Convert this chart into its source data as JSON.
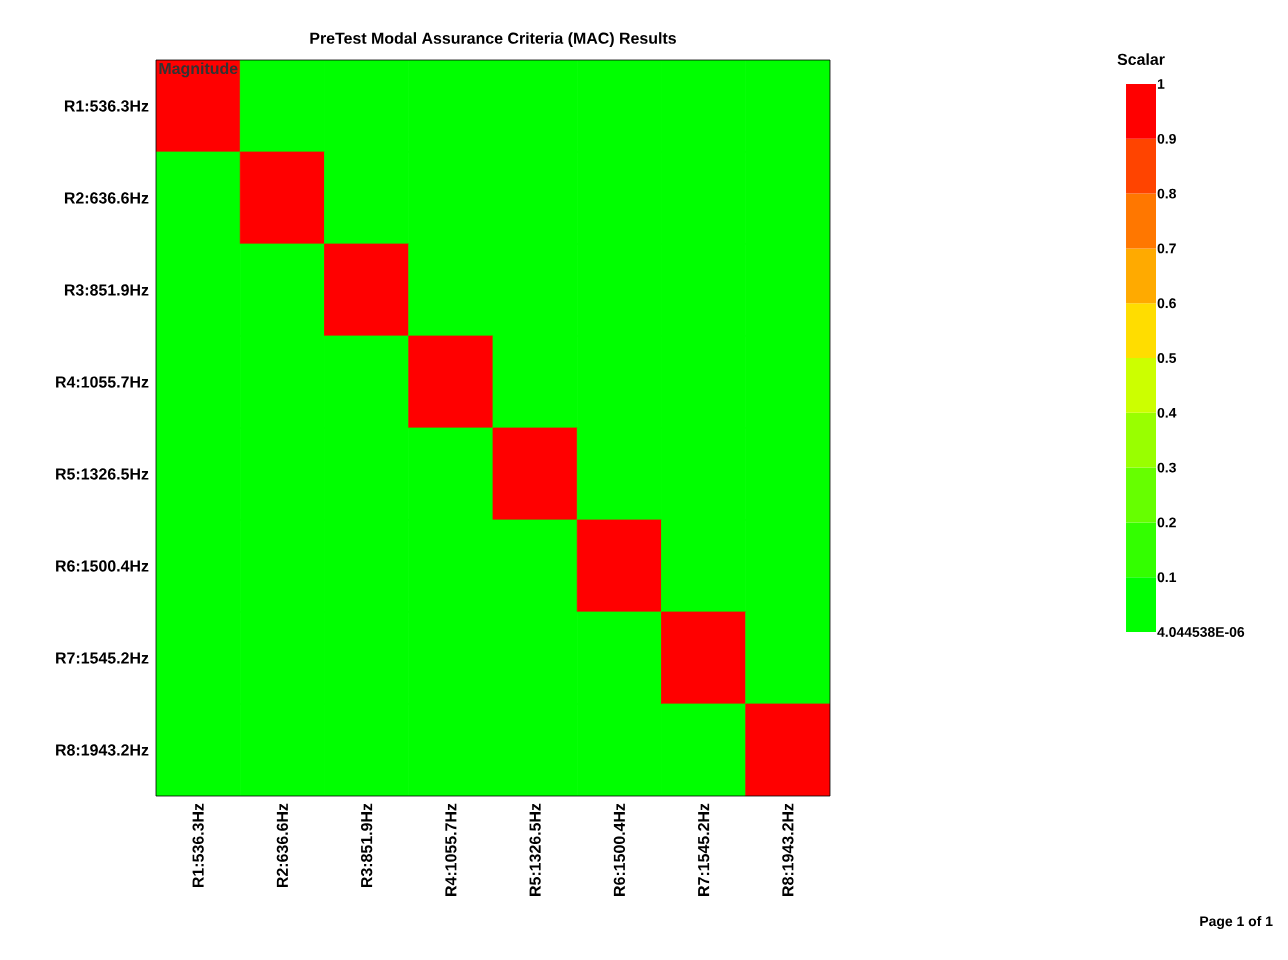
{
  "chart_data": {
    "type": "heatmap",
    "title": "PreTest Modal Assurance Criteria (MAC) Results",
    "subtitle": "Magnitude",
    "clabel": "Scalar",
    "categories": [
      "R1:536.3Hz",
      "R2:636.6Hz",
      "R3:851.9Hz",
      "R4:1055.7Hz",
      "R5:1326.5Hz",
      "R6:1500.4Hz",
      "R7:1545.2Hz",
      "R8:1943.2Hz"
    ],
    "y_categories": [
      "R1:536.3Hz",
      "R2:636.6Hz",
      "R3:851.9Hz",
      "R4:1055.7Hz",
      "R5:1326.5Hz",
      "R6:1500.4Hz",
      "R7:1545.2Hz",
      "R8:1943.2Hz"
    ],
    "cells": [
      [
        1,
        0.05,
        0.05,
        0.05,
        0.05,
        0.05,
        0.05,
        0.05
      ],
      [
        0.05,
        1,
        0.05,
        0.05,
        0.05,
        0.05,
        0.05,
        0.05
      ],
      [
        0.05,
        0.05,
        1,
        0.05,
        0.05,
        0.05,
        0.05,
        0.05
      ],
      [
        0.05,
        0.05,
        0.05,
        1,
        0.05,
        0.05,
        0.05,
        0.05
      ],
      [
        0.05,
        0.05,
        0.05,
        0.05,
        1,
        0.05,
        0.05,
        0.05
      ],
      [
        0.05,
        0.05,
        0.05,
        0.05,
        0.05,
        1,
        0.05,
        0.05
      ],
      [
        0.05,
        0.05,
        0.05,
        0.05,
        0.05,
        0.05,
        1,
        0.05
      ],
      [
        0.05,
        0.05,
        0.05,
        0.05,
        0.05,
        0.05,
        0.05,
        1
      ]
    ],
    "clim": [
      4.044538e-06,
      1
    ],
    "cticks": [
      {
        "value": 4.044538e-06,
        "label": "4.044538E-06"
      },
      0.1,
      0.2,
      0.3,
      0.4,
      0.5,
      0.6,
      0.7,
      0.8,
      0.9,
      1
    ],
    "annotations": [
      "Page 1 of 1"
    ]
  }
}
